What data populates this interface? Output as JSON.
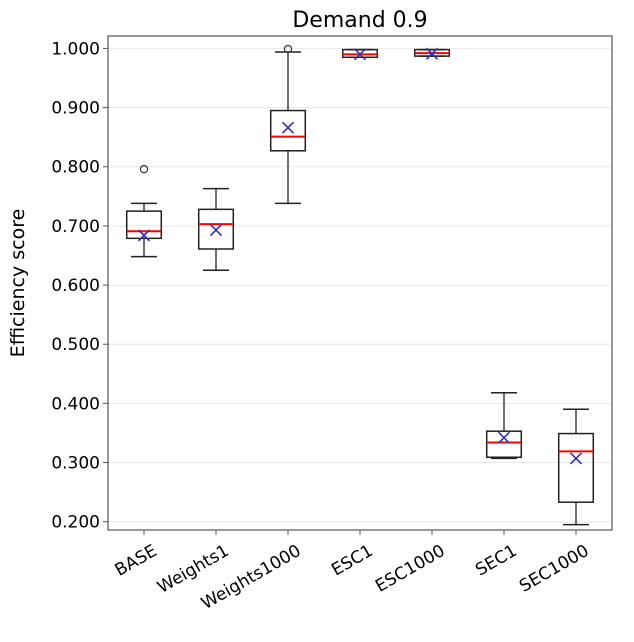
{
  "chart_data": {
    "type": "box",
    "title": "Demand 0.9",
    "xlabel": "",
    "ylabel": "Efficiency score",
    "ylim": [
      0.186,
      1.021
    ],
    "yticks": [
      "0.200",
      "0.300",
      "0.400",
      "0.500",
      "0.600",
      "0.700",
      "0.800",
      "0.900",
      "1.000"
    ],
    "grid": "horizontal",
    "colors": {
      "box": "#000000",
      "median": "#ff0000",
      "mean": "#3333aa",
      "grid": "#e8e8e8"
    },
    "categories": [
      "BASE",
      "Weights1",
      "Weights1000",
      "ESC1",
      "ESC1000",
      "SEC1",
      "SEC1000"
    ],
    "boxes": [
      {
        "whislo": 0.648,
        "q1": 0.679,
        "med": 0.691,
        "q3": 0.725,
        "whishi": 0.738,
        "mean": 0.684,
        "fliers": [
          0.796
        ]
      },
      {
        "whislo": 0.625,
        "q1": 0.661,
        "med": 0.703,
        "q3": 0.728,
        "whishi": 0.763,
        "mean": 0.693,
        "fliers": []
      },
      {
        "whislo": 0.738,
        "q1": 0.827,
        "med": 0.851,
        "q3": 0.895,
        "whishi": 0.994,
        "mean": 0.866,
        "fliers": [
          0.999
        ]
      },
      {
        "whislo": 0.985,
        "q1": 0.985,
        "med": 0.99,
        "q3": 0.998,
        "whishi": 0.998,
        "mean": 0.99,
        "fliers": []
      },
      {
        "whislo": 0.987,
        "q1": 0.987,
        "med": 0.992,
        "q3": 0.998,
        "whishi": 0.998,
        "mean": 0.991,
        "fliers": []
      },
      {
        "whislo": 0.307,
        "q1": 0.309,
        "med": 0.334,
        "q3": 0.353,
        "whishi": 0.418,
        "mean": 0.342,
        "fliers": []
      },
      {
        "whislo": 0.195,
        "q1": 0.233,
        "med": 0.319,
        "q3": 0.349,
        "whishi": 0.39,
        "mean": 0.307,
        "fliers": []
      }
    ]
  }
}
